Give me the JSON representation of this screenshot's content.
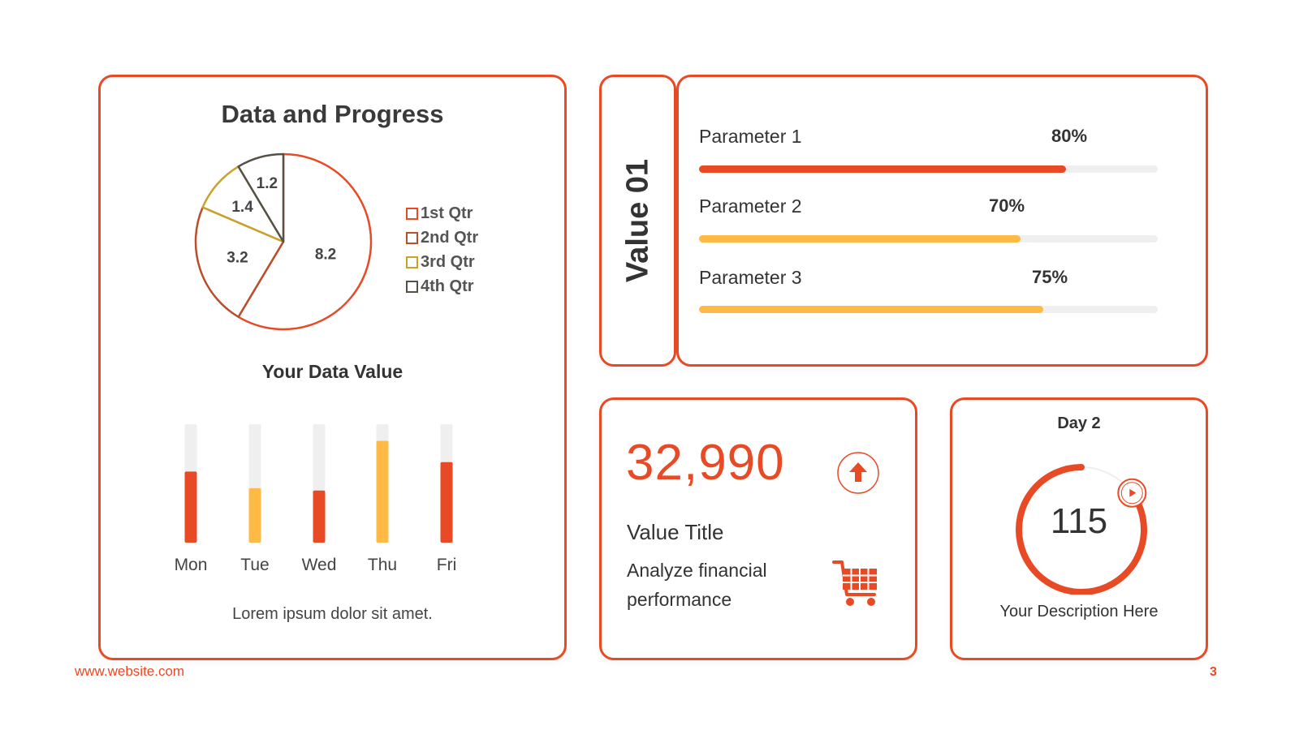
{
  "colors": {
    "accent": "#e84a26",
    "yellow": "#ffb945",
    "track": "#efefef",
    "q2": "#b84e2c",
    "q3": "#c9a227",
    "q4": "#555045"
  },
  "left_card": {
    "title": "Data and Progress",
    "subtitle": "Your Data Value",
    "footnote": "Lorem ipsum dolor sit amet."
  },
  "chart_data": [
    {
      "type": "pie",
      "title": "Data and Progress",
      "categories": [
        "1st Qtr",
        "2nd Qtr",
        "3rd Qtr",
        "4th Qtr"
      ],
      "values": [
        8.2,
        3.2,
        1.4,
        1.2
      ],
      "data_labels": [
        "8.2",
        "3.2",
        "1.4",
        "1.2"
      ],
      "legend": "right",
      "colors": [
        "#e84a26",
        "#b84e2c",
        "#c9a227",
        "#555045"
      ]
    },
    {
      "type": "bar",
      "title": "Your Data Value",
      "categories": [
        "Mon",
        "Tue",
        "Wed",
        "Thu",
        "Fri"
      ],
      "values": [
        60,
        46,
        44,
        86,
        68
      ],
      "ylim": [
        0,
        100
      ],
      "colors": [
        "#e84a26",
        "#ffb945",
        "#e84a26",
        "#ffb945",
        "#e84a26"
      ]
    }
  ],
  "value_card": {
    "label": "Value 01"
  },
  "parameters": [
    {
      "label": "Parameter 1",
      "percent_text": "80%",
      "value": 0.8,
      "color": "#e84a26"
    },
    {
      "label": "Parameter 2",
      "percent_text": "70%",
      "value": 0.7,
      "color": "#ffb945"
    },
    {
      "label": "Parameter 3",
      "percent_text": "75%",
      "value": 0.75,
      "color": "#ffb945"
    }
  ],
  "kpi": {
    "number": "32,990",
    "title": "Value Title",
    "description": "Analyze financial performance",
    "icons": [
      "arrow-up-icon",
      "shopping-cart-icon"
    ]
  },
  "day_card": {
    "title": "Day 2",
    "value": "115",
    "progress": 0.85,
    "description": "Your Description Here"
  },
  "footer": {
    "website": "www.website.com",
    "page": "3"
  }
}
